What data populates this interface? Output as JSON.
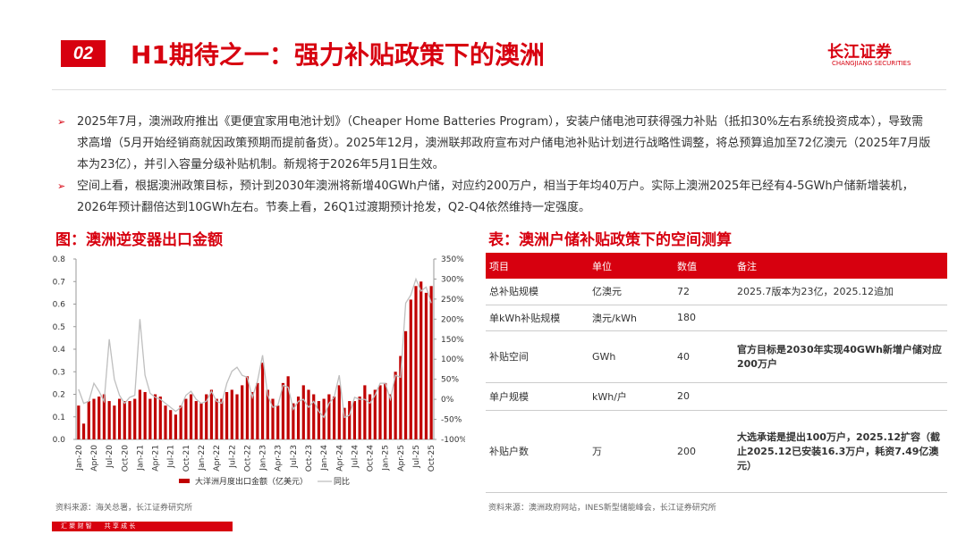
{
  "header": {
    "section": "02",
    "title": "H1期待之一：强力补贴政策下的澳洲",
    "logo": "长江证券",
    "logo_en": "CHANGJIANG SECURITIES"
  },
  "bullets": [
    "2025年7月，澳洲政府推出《更便宜家用电池计划》（Cheaper Home Batteries Program），安装户储电池可获得强力补贴（抵扣30%左右系统投资成本），导致需求高增（5月开始经销商就因政策预期而提前备货）。2025年12月，澳洲联邦政府宣布对户储电池补贴计划进行战略性调整，将总预算追加至72亿澳元（2025年7月版本为23亿），并引入容量分级补贴机制。新规将于2026年5月1日生效。",
    "空间上看，根据澳洲政策目标，预计到2030年澳洲将新增40GWh户储，对应约200万户，相当于年均40万户。实际上澳洲2025年已经有4-5GWh户储新增装机，2026年预计翻倍达到10GWh左右。节奏上看，26Q1过渡期预计抢发，Q2-Q4依然维持一定强度。"
  ],
  "chart_data": {
    "type": "bar",
    "title": "图：澳洲逆变器出口金额",
    "source": "资料来源：海关总署，长江证券研究所",
    "categories": [
      "Jan-20",
      null,
      null,
      "Apr-20",
      null,
      null,
      "Jul-20",
      null,
      null,
      "Oct-20",
      null,
      null,
      "Jan-21",
      null,
      null,
      "Apr-21",
      null,
      null,
      "Jul-21",
      null,
      null,
      "Oct-21",
      null,
      null,
      "Jan-22",
      null,
      null,
      "Apr-22",
      null,
      null,
      "Jul-22",
      null,
      null,
      "Oct-22",
      null,
      null,
      "Jan-23",
      null,
      null,
      "Apr-23",
      null,
      null,
      "Jul-23",
      null,
      null,
      "Oct-23",
      null,
      null,
      "Jan-24",
      null,
      null,
      "Apr-24",
      null,
      null,
      "Jul-24",
      null,
      null,
      "Oct-24",
      null,
      null,
      "Jan-25",
      null,
      null,
      "Apr-25",
      null,
      null,
      "Jul-25",
      null,
      null,
      "Oct-25"
    ],
    "series": [
      {
        "name": "大洋洲月度出口金额（亿美元）",
        "color": "#c00000",
        "values": [
          0.15,
          0.07,
          0.17,
          0.18,
          0.19,
          0.2,
          0.17,
          0.15,
          0.18,
          0.17,
          0.17,
          0.18,
          0.22,
          0.21,
          0.18,
          0.2,
          0.19,
          0.15,
          0.13,
          0.11,
          0.15,
          0.18,
          0.2,
          0.17,
          0.16,
          0.2,
          0.22,
          0.18,
          0.18,
          0.21,
          0.22,
          0.2,
          0.24,
          0.28,
          0.21,
          0.25,
          0.34,
          0.22,
          0.18,
          0.15,
          0.25,
          0.28,
          0.16,
          0.19,
          0.24,
          0.22,
          0.2,
          0.17,
          0.18,
          0.2,
          0.19,
          0.24,
          0.14,
          0.17,
          0.17,
          0.19,
          0.24,
          0.2,
          0.22,
          0.24,
          0.25,
          0.2,
          0.3,
          0.37,
          0.48,
          0.62,
          0.68,
          0.7,
          0.65,
          0.68
        ]
      },
      {
        "name": "同比",
        "type": "line",
        "axis": "y2",
        "color": "#bfbfbf",
        "values": [
          25,
          -10,
          -5,
          40,
          20,
          -5,
          150,
          50,
          10,
          -10,
          5,
          10,
          200,
          60,
          15,
          5,
          0,
          -10,
          -20,
          -30,
          -20,
          10,
          20,
          0,
          -10,
          -5,
          20,
          -5,
          -10,
          40,
          70,
          80,
          60,
          55,
          5,
          45,
          110,
          10,
          -20,
          -15,
          35,
          30,
          -25,
          -5,
          0,
          -20,
          -5,
          -30,
          -45,
          -10,
          5,
          60,
          -45,
          -40,
          5,
          0,
          0,
          -10,
          10,
          40,
          40,
          0,
          60,
          55,
          240,
          260,
          300,
          270,
          280,
          240
        ]
      }
    ],
    "ylim": [
      0,
      0.8
    ],
    "yticks": [
      {
        "value": 0,
        "label": "0.0"
      },
      0.1,
      0.2,
      0.3,
      0.4,
      0.5,
      0.6,
      0.7,
      0.8
    ],
    "y2lim": [
      -100,
      350
    ],
    "y2ticks": [
      {
        "value": -100,
        "label": "-100%"
      },
      {
        "value": -50,
        "label": "-50%"
      },
      {
        "value": 0,
        "label": "0%"
      },
      {
        "value": 50,
        "label": "50%"
      },
      {
        "value": 100,
        "label": "100%"
      },
      {
        "value": 150,
        "label": "150%"
      },
      {
        "value": 200,
        "label": "200%"
      },
      {
        "value": 250,
        "label": "250%"
      },
      {
        "value": 300,
        "label": "300%"
      },
      {
        "value": 350,
        "label": "350%"
      }
    ]
  },
  "table": {
    "title": "表：澳洲户储补贴政策下的空间测算",
    "header": [
      "项目",
      "单位",
      "数值",
      "备注"
    ],
    "rows": [
      [
        "总补贴规模",
        "亿澳元",
        72,
        "2025.7版本为23亿，2025.12追加"
      ],
      [
        "单kWh补贴规模",
        "澳元/kWh",
        180,
        ""
      ],
      [
        "补贴空间",
        "GWh",
        40,
        "官方目标是2030年实现40GWh新增户储对应200万户"
      ],
      [
        "单户规模",
        "kWh/户",
        20,
        ""
      ],
      [
        "补贴户数",
        "万",
        200,
        "大选承诺是提出100万户，2025.12扩容（截止2025.12已安装16.3万户，耗资7.49亿澳元）"
      ]
    ],
    "source": "资料来源：澳洲政府网站，INES新型储能峰会，长江证券研究所"
  },
  "footer": "汇 聚 财 智　　共 享 成 长"
}
